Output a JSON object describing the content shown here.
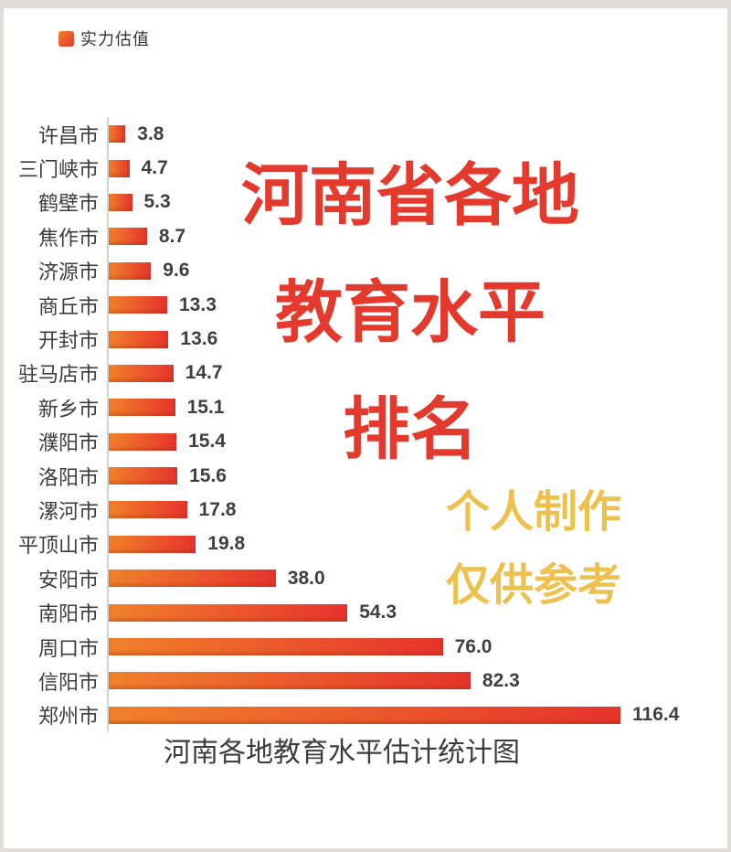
{
  "legend": {
    "label": "实力估值"
  },
  "overlay": {
    "title_line1": "河南省各地",
    "title_line2": "教育水平",
    "title_line3": "排名",
    "watermark_line1": "个人制作",
    "watermark_line2": "仅供参考"
  },
  "colors": {
    "bar_gradient_start": "#F0812B",
    "bar_gradient_end": "#E6332C",
    "title_red": "#E43A2E",
    "watermark_yellow": "#ECC14E"
  },
  "chart_data": {
    "type": "bar",
    "orientation": "horizontal",
    "title": "河南各地教育水平估计统计图",
    "series_name": "实力估值",
    "categories": [
      "许昌市",
      "三门峡市",
      "鹤壁市",
      "焦作市",
      "济源市",
      "商丘市",
      "开封市",
      "驻马店市",
      "新乡市",
      "濮阳市",
      "洛阳市",
      "漯河市",
      "平顶山市",
      "安阳市",
      "南阳市",
      "周口市",
      "信阳市",
      "郑州市"
    ],
    "values": [
      3.8,
      4.7,
      5.3,
      8.7,
      9.6,
      13.3,
      13.6,
      14.7,
      15.1,
      15.4,
      15.6,
      17.8,
      19.8,
      38.0,
      54.3,
      76.0,
      82.3,
      116.4
    ],
    "value_label_decimals": 1,
    "xlim": [
      0,
      120
    ],
    "grid": false,
    "legend_position": "top-left"
  }
}
